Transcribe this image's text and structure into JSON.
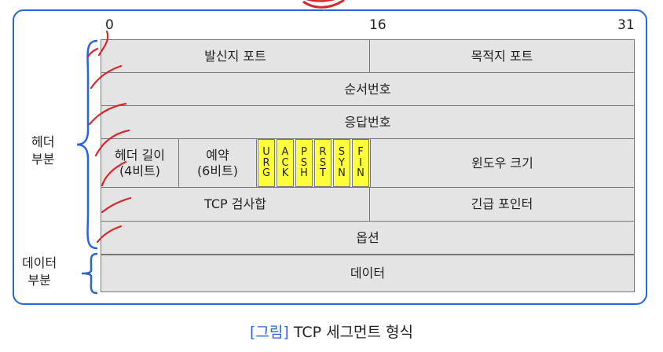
{
  "bit_labels": {
    "start": "0",
    "middle": "16",
    "end": "31"
  },
  "fields": {
    "source_port": "발신지 포트",
    "dest_port": "목적지 포트",
    "sequence_number": "순서번호",
    "ack_number": "응답번호",
    "header_length_line1": "헤더 길이",
    "header_length_line2": "(4비트)",
    "reserved_line1": "예약",
    "reserved_line2": "(6비트)",
    "window_size": "윈도우 크기",
    "checksum": "TCP 검사합",
    "urgent_pointer": "긴급 포인터",
    "options": "옵션",
    "data": "데이터"
  },
  "flags": [
    {
      "name": "URG",
      "letters": [
        "U",
        "R",
        "G"
      ]
    },
    {
      "name": "ACK",
      "letters": [
        "A",
        "C",
        "K"
      ]
    },
    {
      "name": "PSH",
      "letters": [
        "P",
        "S",
        "H"
      ]
    },
    {
      "name": "RST",
      "letters": [
        "R",
        "S",
        "T"
      ]
    },
    {
      "name": "SYN",
      "letters": [
        "S",
        "Y",
        "N"
      ]
    },
    {
      "name": "FIN",
      "letters": [
        "F",
        "I",
        "N"
      ]
    }
  ],
  "side_labels": {
    "header_line1": "헤더",
    "header_line2": "부분",
    "data_line1": "데이터",
    "data_line2": "부분"
  },
  "caption": {
    "tag": "[그림]",
    "text": "TCP 세그먼트 형식"
  },
  "colors": {
    "frame": "#2b63d9",
    "cell": "#e4e4e4",
    "flag": "#ffff3b",
    "annotation": "#d9262c"
  }
}
